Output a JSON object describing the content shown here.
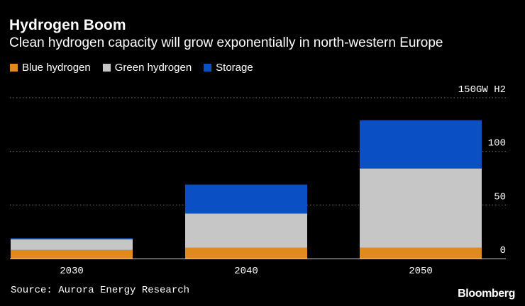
{
  "header": {
    "title": "Hydrogen Boom",
    "subtitle": "Clean hydrogen capacity will grow exponentially in north-western Europe"
  },
  "legend": {
    "items": [
      {
        "label": "Blue hydrogen",
        "color": "#e08a1e"
      },
      {
        "label": "Green hydrogen",
        "color": "#c6c6c6"
      },
      {
        "label": "Storage",
        "color": "#0b4fc4"
      }
    ]
  },
  "footer": {
    "source": "Source: Aurora Energy Research",
    "brand": "Bloomberg"
  },
  "chart_data": {
    "type": "bar",
    "stacked": true,
    "categories": [
      "2030",
      "2040",
      "2050"
    ],
    "series": [
      {
        "name": "Blue hydrogen",
        "color": "#e08a1e",
        "values": [
          8,
          10,
          10
        ]
      },
      {
        "name": "Green hydrogen",
        "color": "#c6c6c6",
        "values": [
          10,
          32,
          74
        ]
      },
      {
        "name": "Storage",
        "color": "#0b4fc4",
        "values": [
          1,
          27,
          45
        ]
      }
    ],
    "y_ticks": [
      0,
      50,
      100,
      150
    ],
    "y_tick_labels": [
      "0",
      "50",
      "100",
      "150GW H2"
    ],
    "ylim": [
      0,
      150
    ],
    "grid": true,
    "xlabel": "",
    "ylabel": "GW H2"
  }
}
